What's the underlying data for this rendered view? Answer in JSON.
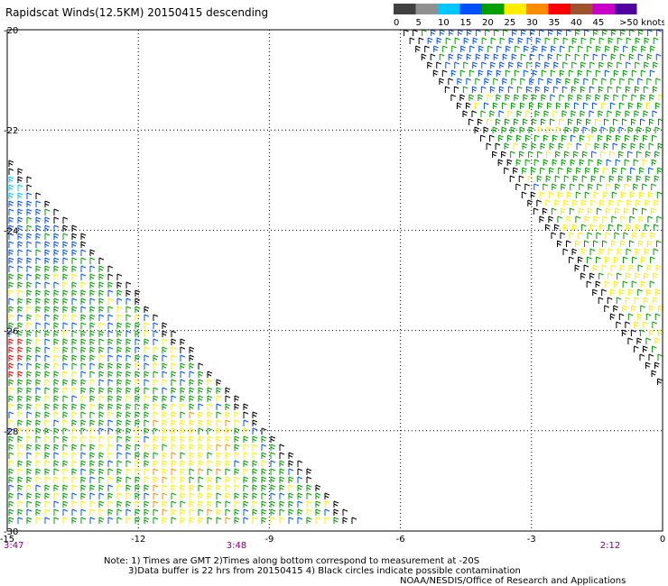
{
  "title": "Rapidscat Winds(12.5KM) 20150415 descending",
  "legend": {
    "labels": [
      "0",
      "5",
      "10",
      "15",
      "20",
      "25",
      "30",
      "35",
      "40",
      "45",
      ">50 knots"
    ],
    "colors": [
      "#404040",
      "#909090",
      "#00c8ff",
      "#0050ff",
      "#00a000",
      "#ffee00",
      "#ff8c00",
      "#ff0000",
      "#a0522d",
      "#c800c8",
      "#5000a0"
    ]
  },
  "map": {
    "lon_ticks": [
      "-15",
      "-12",
      "-9",
      "-6",
      "-3",
      "0"
    ],
    "lat_ticks": [
      "-20",
      "-22",
      "-24",
      "-26",
      "-28",
      "-30"
    ],
    "time_labels": [
      "3:47",
      "3:48",
      "2:12"
    ],
    "wind_colors": {
      "10-15": "#00c8ff",
      "15-20": "#0050ff",
      "20-25": "#00a000",
      "25-30": "#ffee00",
      "30-35": "#ff8c00",
      "35-40": "#ff0000",
      "low": "#000000"
    }
  },
  "notes": {
    "line1": "Note: 1) Times are GMT 2)Times along bottom correspond to measurement at -20S",
    "line2": "3)Data buffer is 22 hrs from 20150415 4) Black circles indicate possible contamination",
    "credit": "NOAA/NESDIS/Office of Research and Applications"
  }
}
